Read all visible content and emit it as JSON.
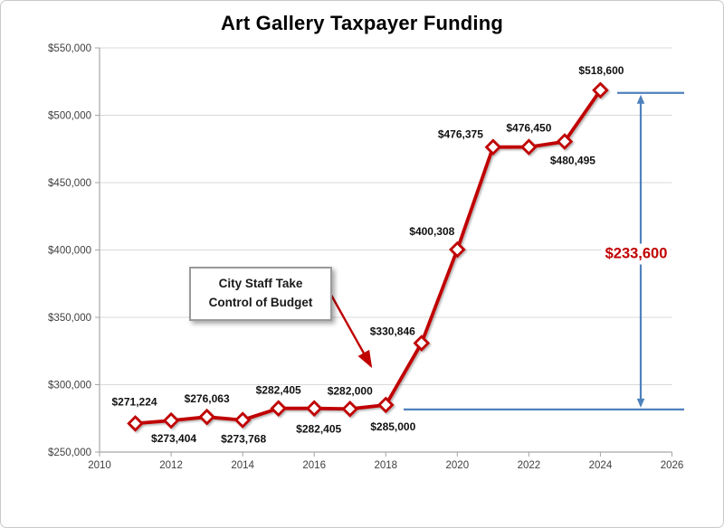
{
  "chart_data": {
    "type": "line",
    "title": "Art Gallery Taxpayer Funding",
    "xlabel": "",
    "ylabel": "",
    "grid": true,
    "x_axis": {
      "range": [
        2010,
        2026
      ],
      "ticks": [
        2010,
        2012,
        2014,
        2016,
        2018,
        2020,
        2022,
        2024,
        2026
      ]
    },
    "y_axis": {
      "range": [
        250000,
        550000
      ],
      "ticks": [
        {
          "value": 550000,
          "label": "$550,000"
        },
        {
          "value": 500000,
          "label": "$500,000"
        },
        {
          "value": 450000,
          "label": "$450,000"
        },
        {
          "value": 400000,
          "label": "$400,000"
        },
        {
          "value": 350000,
          "label": "$350,000"
        },
        {
          "value": 300000,
          "label": "$300,000"
        },
        {
          "value": 250000,
          "label": "$250,000"
        }
      ]
    },
    "series": [
      {
        "name": "Art Gallery Taxpayer Funding",
        "points": [
          {
            "year": 2011,
            "value": 271224,
            "label": "$271,224",
            "dx": -1,
            "dy": -24
          },
          {
            "year": 2012,
            "value": 273404,
            "label": "$273,404",
            "dx": 3,
            "dy": 20
          },
          {
            "year": 2013,
            "value": 276063,
            "label": "$276,063",
            "dx": 0,
            "dy": -20
          },
          {
            "year": 2014,
            "value": 273768,
            "label": "$273,768",
            "dx": 1,
            "dy": 21
          },
          {
            "year": 2015,
            "value": 282405,
            "label": "$282,405",
            "dx": 0,
            "dy": -20
          },
          {
            "year": 2016,
            "value": 282405,
            "label": "$282,405",
            "dx": 5,
            "dy": 23
          },
          {
            "year": 2017,
            "value": 282000,
            "label": "$282,000",
            "dx": 0,
            "dy": -20
          },
          {
            "year": 2018,
            "value": 285000,
            "label": "$285,000",
            "dx": 8,
            "dy": 24
          },
          {
            "year": 2019,
            "value": 330846,
            "label": "$330,846",
            "dx": -32,
            "dy": -13
          },
          {
            "year": 2020,
            "value": 400308,
            "label": "$400,308",
            "dx": -28,
            "dy": -20
          },
          {
            "year": 2021,
            "value": 476375,
            "label": "$476,375",
            "dx": -36,
            "dy": -14
          },
          {
            "year": 2022,
            "value": 476450,
            "label": "$476,450",
            "dx": 0,
            "dy": -21
          },
          {
            "year": 2023,
            "value": 480495,
            "label": "$480,495",
            "dx": 9,
            "dy": 21
          },
          {
            "year": 2024,
            "value": 518600,
            "label": "$518,600",
            "dx": 1,
            "dy": -22
          }
        ]
      }
    ],
    "annotations": {
      "callout": {
        "text": "City Staff Take\nControl of Budget"
      },
      "difference": {
        "label": "$233,600",
        "from_value": 285000,
        "to_value": 518600
      }
    },
    "legend": "none",
    "colors": {
      "line": "#C00000",
      "marker_fill": "#FFFFFF",
      "data_label_text": "#111111",
      "annotation_blue": "#4F81BD",
      "difference_text": "#C00000",
      "grid": "#D9D9D9",
      "axis": "#A6A6A6",
      "tick_text": "#404040",
      "title_text": "#000000"
    }
  }
}
